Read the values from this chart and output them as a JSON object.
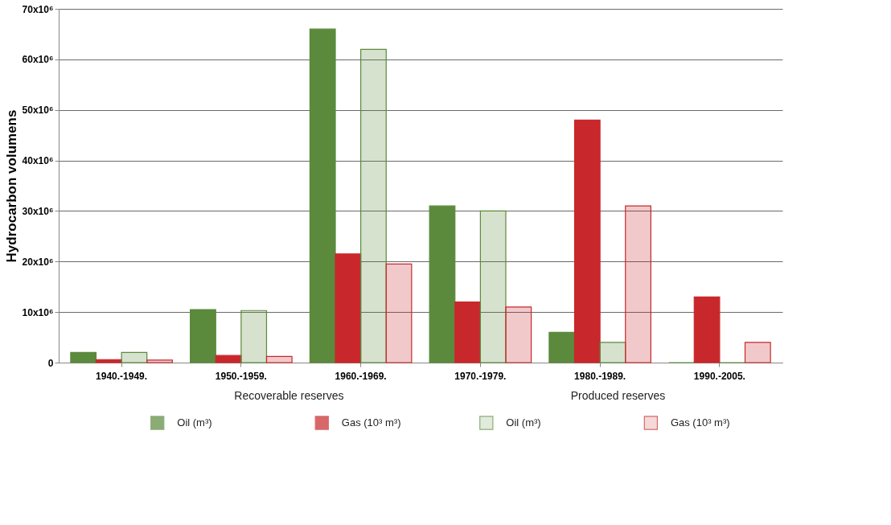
{
  "chart_data": {
    "type": "bar",
    "ylabel": "Hydrocarbon volumens",
    "categories": [
      "1940.-1949.",
      "1950.-1959.",
      "1960.-1969.",
      "1970.-1979.",
      "1980.-1989.",
      "1990.-2005."
    ],
    "series": [
      {
        "name": "Oil (m³)",
        "color": "#5b8a3c",
        "values": [
          2000000,
          10500000,
          66000000,
          31000000,
          6000000,
          0
        ]
      },
      {
        "name": "Gas (10³ m³)",
        "color": "#c8282c",
        "values": [
          600000,
          1400000,
          21500000,
          12000000,
          48000000,
          13000000
        ]
      },
      {
        "name": "Oil (m³)",
        "color": "#5b8a3c",
        "values": [
          2000000,
          10300000,
          62000000,
          30000000,
          4000000,
          0
        ]
      },
      {
        "name": "Gas (10³ m³)",
        "color": "#c8282c",
        "values": [
          500000,
          1200000,
          19500000,
          11000000,
          31000000,
          4000000
        ]
      }
    ],
    "ylim": [
      0,
      70000000
    ],
    "yticks": [
      0,
      {
        "value": 10000000,
        "label": "10x10⁶"
      },
      {
        "value": 20000000,
        "label": "20x10⁶"
      },
      {
        "value": 30000000,
        "label": "30x10⁶"
      },
      {
        "value": 40000000,
        "label": "40x10⁶"
      },
      {
        "value": 50000000,
        "label": "50x10⁶"
      },
      {
        "value": 60000000,
        "label": "60x10⁶"
      },
      {
        "value": 70000000,
        "label": "70x10⁶"
      }
    ],
    "grid": "y",
    "legend": "bottom",
    "annotations": [
      "Recoverable reserves",
      "Produced reserves"
    ]
  }
}
